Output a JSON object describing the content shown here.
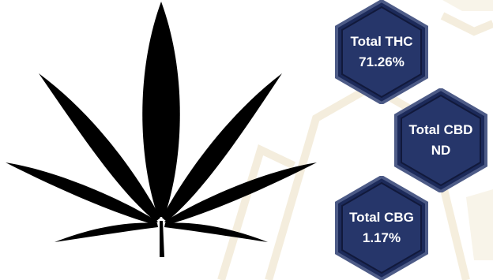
{
  "cannabinoids": [
    {
      "name": "Total THC",
      "value": "71.26%"
    },
    {
      "name": "Total CBD",
      "value": "ND"
    },
    {
      "name": "Total CBG",
      "value": "1.17%"
    }
  ],
  "icons": {
    "leaf": "cannabis-leaf-icon"
  },
  "colors": {
    "hex_fill": "#1c2a5a",
    "hex_border": "#4d5b87",
    "hex_inner": "#26366a",
    "leaf": "#000000",
    "watermark": "#efe6cf"
  }
}
